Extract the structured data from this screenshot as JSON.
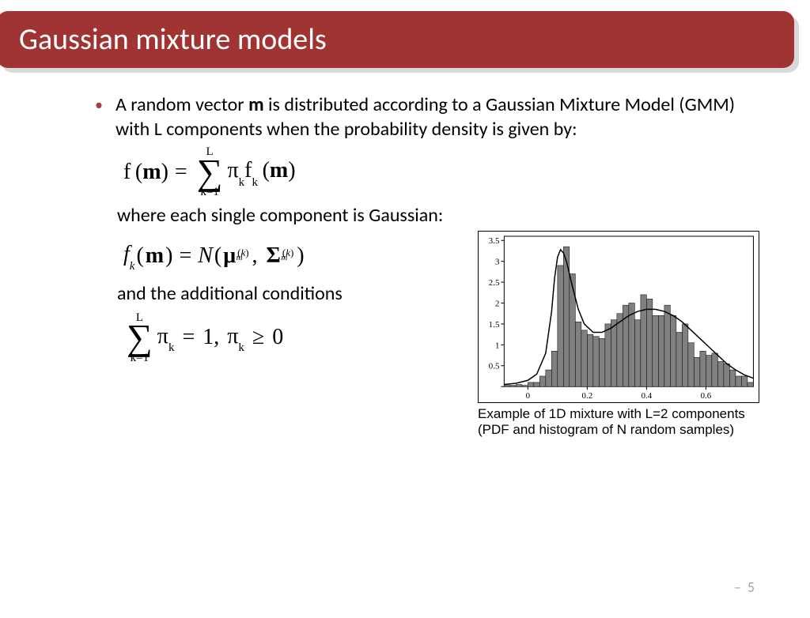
{
  "header": {
    "title": "Gaussian mixture models",
    "bg_color": "#a03433",
    "text_color": "#ffffff"
  },
  "colors": {
    "bullet": "#a0433e",
    "text": "#000000",
    "shadow": "#d9d9d9",
    "pagenum": "#a8a4a0"
  },
  "bullet": {
    "text_before_bold": "A random vector ",
    "bold_word": "m",
    "text_after_bold": " is distributed according to a Gaussian Mixture Model (GMM) with L components when the probability density is given by:"
  },
  "line_where": "where each single component is Gaussian:",
  "line_conditions": "and the additional conditions",
  "formulas": {
    "f1_lhs": "f (m)",
    "f2_lhs": "f_k(m) = N(μ_m^(k), Σ_m^(k))",
    "f3": "Σ π_k = 1, π_k ≥ 0"
  },
  "chart": {
    "type": "histogram+line",
    "xlim": [
      -0.08,
      0.76
    ],
    "ylim": [
      0,
      3.6
    ],
    "yticks": [
      0,
      0.5,
      1,
      1.5,
      2,
      2.5,
      3,
      3.5
    ],
    "ytick_labels": [
      "",
      "0.5",
      "1",
      "1.5",
      "2",
      "2.5",
      "3",
      "3.5"
    ],
    "xticks": [
      0,
      0.2,
      0.4,
      0.6
    ],
    "xtick_labels": [
      "0",
      "0.2",
      "0.4",
      "0.6"
    ],
    "border_color": "#000000",
    "bar_fill": "#808080",
    "bar_stroke": "#000000",
    "line_color": "#000000",
    "line_width": 1.5,
    "tick_fontsize": 11,
    "bar_width": 0.02,
    "bar_x_start": -0.08,
    "bars": [
      0.03,
      0.03,
      0.05,
      0.03,
      0.1,
      0.1,
      0.25,
      0.4,
      0.85,
      2.9,
      3.35,
      2.7,
      1.55,
      1.35,
      1.25,
      1.2,
      1.15,
      1.5,
      1.6,
      1.75,
      1.95,
      2.0,
      1.6,
      2.2,
      2.1,
      1.7,
      1.7,
      1.95,
      1.7,
      1.3,
      1.5,
      1.05,
      0.7,
      0.85,
      0.75,
      0.8,
      0.6,
      0.55,
      0.4,
      0.25,
      0.25,
      0.1
    ],
    "curve": [
      [
        -0.08,
        0.05
      ],
      [
        -0.04,
        0.08
      ],
      [
        0.0,
        0.15
      ],
      [
        0.03,
        0.3
      ],
      [
        0.06,
        0.8
      ],
      [
        0.08,
        1.8
      ],
      [
        0.09,
        2.6
      ],
      [
        0.1,
        3.1
      ],
      [
        0.11,
        3.28
      ],
      [
        0.12,
        3.2
      ],
      [
        0.13,
        3.0
      ],
      [
        0.15,
        2.4
      ],
      [
        0.17,
        1.85
      ],
      [
        0.19,
        1.5
      ],
      [
        0.22,
        1.3
      ],
      [
        0.25,
        1.3
      ],
      [
        0.28,
        1.4
      ],
      [
        0.31,
        1.55
      ],
      [
        0.34,
        1.7
      ],
      [
        0.37,
        1.8
      ],
      [
        0.4,
        1.85
      ],
      [
        0.43,
        1.85
      ],
      [
        0.46,
        1.8
      ],
      [
        0.49,
        1.7
      ],
      [
        0.52,
        1.55
      ],
      [
        0.55,
        1.35
      ],
      [
        0.58,
        1.15
      ],
      [
        0.61,
        0.95
      ],
      [
        0.64,
        0.75
      ],
      [
        0.67,
        0.55
      ],
      [
        0.7,
        0.4
      ],
      [
        0.73,
        0.28
      ],
      [
        0.76,
        0.2
      ]
    ],
    "caption": "Example of 1D mixture with L=2 components (PDF and histogram of N random samples)"
  },
  "page_number": "5"
}
